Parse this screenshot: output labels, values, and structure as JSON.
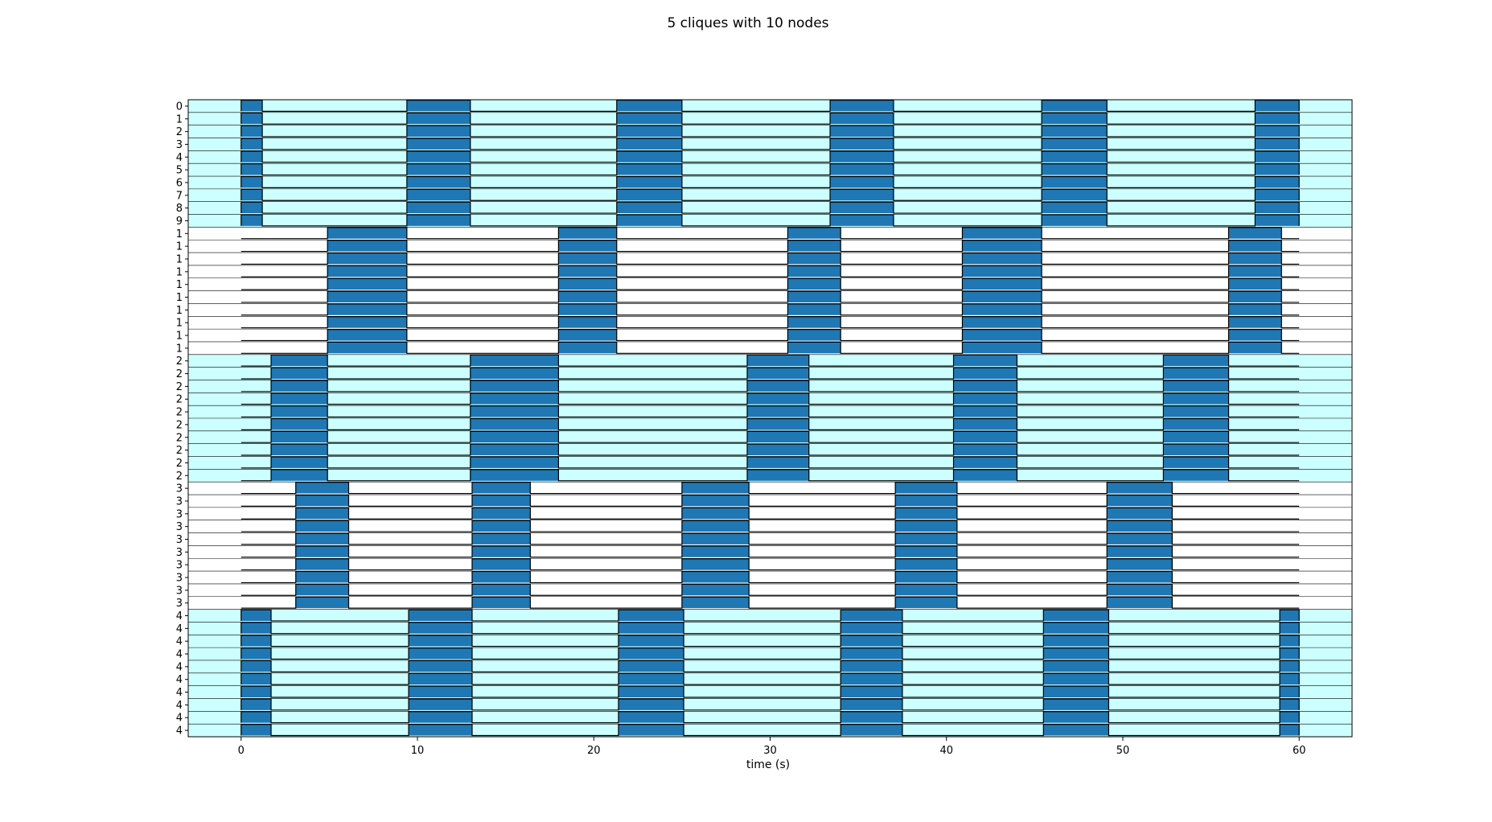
{
  "chart_data": {
    "type": "area",
    "title": "5 cliques with 10 nodes",
    "xlabel": "time (s)",
    "ylabel": "",
    "xlim": [
      -3,
      63
    ],
    "x_data_range": [
      0,
      60
    ],
    "xticks": [
      0,
      10,
      20,
      30,
      40,
      50,
      60
    ],
    "xtick_labels": [
      "0",
      "10",
      "20",
      "30",
      "40",
      "50",
      "60"
    ],
    "row_labels": [
      "0",
      "1",
      "2",
      "3",
      "4",
      "5",
      "6",
      "7",
      "8",
      "9",
      "1",
      "1",
      "1",
      "1",
      "1",
      "1",
      "1",
      "1",
      "1",
      "1",
      "2",
      "2",
      "2",
      "2",
      "2",
      "2",
      "2",
      "2",
      "2",
      "2",
      "3",
      "3",
      "3",
      "3",
      "3",
      "3",
      "3",
      "3",
      "3",
      "3",
      "4",
      "4",
      "4",
      "4",
      "4",
      "4",
      "4",
      "4",
      "4",
      "4"
    ],
    "nodes_per_clique": 10,
    "cliques": [
      {
        "id": 0,
        "band_color": "#ccffff",
        "active_intervals": [
          [
            0,
            1.2
          ],
          [
            9.4,
            13.0
          ],
          [
            21.3,
            25.0
          ],
          [
            33.4,
            37.0
          ],
          [
            45.4,
            49.1
          ],
          [
            57.5,
            60
          ]
        ]
      },
      {
        "id": 1,
        "band_color": "#ffffff",
        "active_intervals": [
          [
            4.9,
            9.4
          ],
          [
            18.0,
            21.3
          ],
          [
            31.0,
            34.0
          ],
          [
            40.9,
            45.4
          ],
          [
            56.0,
            59.0
          ]
        ]
      },
      {
        "id": 2,
        "band_color": "#ccffff",
        "active_intervals": [
          [
            1.7,
            4.9
          ],
          [
            13.0,
            18.0
          ],
          [
            28.7,
            32.2
          ],
          [
            40.4,
            44.0
          ],
          [
            52.3,
            56.0
          ]
        ]
      },
      {
        "id": 3,
        "band_color": "#ffffff",
        "active_intervals": [
          [
            3.1,
            6.1
          ],
          [
            13.1,
            16.4
          ],
          [
            25.0,
            28.8
          ],
          [
            37.1,
            40.6
          ],
          [
            49.1,
            52.8
          ]
        ]
      },
      {
        "id": 4,
        "band_color": "#ccffff",
        "active_intervals": [
          [
            0,
            1.7
          ],
          [
            9.5,
            13.1
          ],
          [
            21.4,
            25.1
          ],
          [
            34.0,
            37.5
          ],
          [
            45.5,
            49.2
          ],
          [
            58.9,
            60
          ]
        ]
      }
    ],
    "fill_color": "#1f77b4",
    "grid": false,
    "legend": "none"
  }
}
